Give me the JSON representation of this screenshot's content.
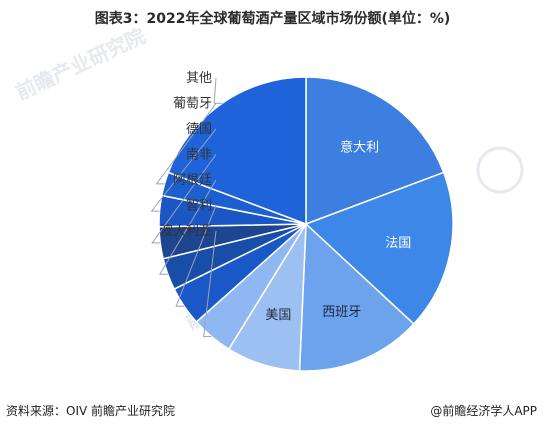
{
  "title": "图表3：2022年全球葡萄酒产量区域市场份额(单位：%)",
  "watermark": "前瞻产业研究院",
  "footer": {
    "source": "资料来源：OIV 前瞻产业研究院",
    "brand": "@前瞻经济学人APP"
  },
  "chart_data": {
    "type": "pie",
    "categories": [
      "意大利",
      "法国",
      "西班牙",
      "美国",
      "澳大利亚",
      "智利",
      "阿根廷",
      "南非",
      "德国",
      "葡萄牙",
      "其他"
    ],
    "values": [
      19.3,
      17.6,
      13.8,
      8.1,
      4.6,
      4.3,
      3.5,
      3.5,
      3.4,
      2.6,
      19.3
    ],
    "colors": [
      "#3d7fe0",
      "#3d87e8",
      "#6da2ec",
      "#9cc0f2",
      "#8fb8f3",
      "#1a58c7",
      "#184ea8",
      "#1d4590",
      "#1a57c5",
      "#1c5fcf",
      "#1f63da"
    ],
    "label_positions": [
      "inside",
      "inside",
      "inside",
      "inside",
      "outside",
      "outside",
      "outside",
      "outside",
      "outside",
      "outside",
      "outside"
    ]
  }
}
